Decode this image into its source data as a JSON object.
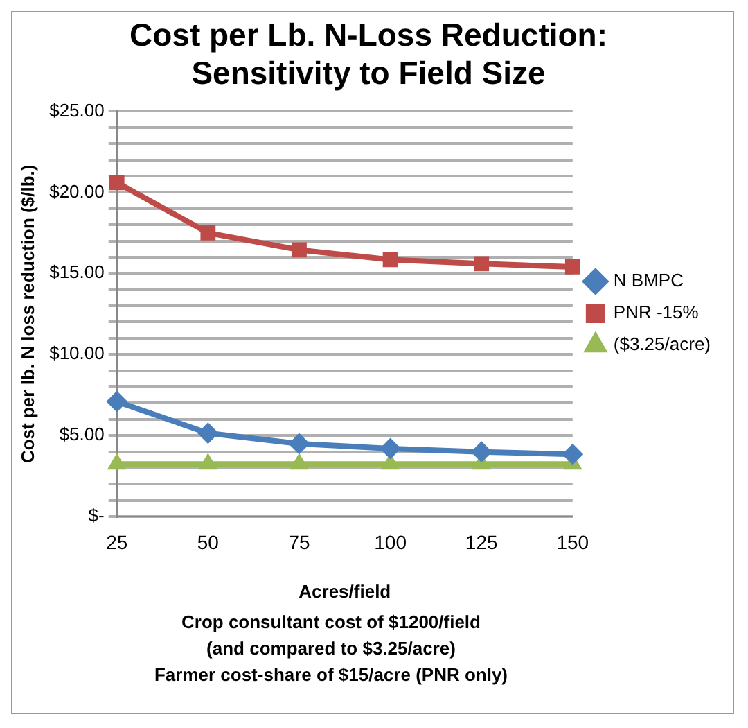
{
  "chart_data": {
    "type": "line",
    "title": "Cost per Lb. N-Loss Reduction: Sensitivity to Field Size",
    "xlabel": "Acres/field",
    "ylabel": "Cost per lb. N loss reduction ($/lb.)",
    "categories": [
      "25",
      "50",
      "75",
      "100",
      "125",
      "150"
    ],
    "series": [
      {
        "name": "N BMPC",
        "color": "#4a7ebb",
        "marker": "diamond",
        "values": [
          7.1,
          5.15,
          4.5,
          4.2,
          4.0,
          3.85
        ]
      },
      {
        "name": "PNR -15%",
        "color": "#be4b48",
        "marker": "square",
        "values": [
          20.6,
          17.5,
          16.45,
          15.85,
          15.6,
          15.4
        ]
      },
      {
        "name": "($3.25/acre)",
        "color": "#98b954",
        "marker": "triangle",
        "values": [
          3.25,
          3.25,
          3.25,
          3.25,
          3.25,
          3.25
        ]
      }
    ],
    "ylim": [
      0,
      25
    ],
    "yticks": [
      {
        "value": 0,
        "label": "$-"
      },
      {
        "value": 1,
        "label": null
      },
      {
        "value": 2,
        "label": null
      },
      {
        "value": 3,
        "label": null
      },
      {
        "value": 4,
        "label": null
      },
      {
        "value": 5,
        "label": "$5.00"
      },
      {
        "value": 6,
        "label": null
      },
      {
        "value": 7,
        "label": null
      },
      {
        "value": 8,
        "label": null
      },
      {
        "value": 9,
        "label": null
      },
      {
        "value": 10,
        "label": "$10.00"
      },
      {
        "value": 11,
        "label": null
      },
      {
        "value": 12,
        "label": null
      },
      {
        "value": 13,
        "label": null
      },
      {
        "value": 14,
        "label": null
      },
      {
        "value": 15,
        "label": "$15.00"
      },
      {
        "value": 16,
        "label": null
      },
      {
        "value": 17,
        "label": null
      },
      {
        "value": 18,
        "label": null
      },
      {
        "value": 19,
        "label": null
      },
      {
        "value": 20,
        "label": "$20.00"
      },
      {
        "value": 21,
        "label": null
      },
      {
        "value": 22,
        "label": null
      },
      {
        "value": 23,
        "label": null
      },
      {
        "value": 24,
        "label": null
      },
      {
        "value": 25,
        "label": "$25.00"
      }
    ],
    "grid": "y",
    "legend": "right",
    "line_style": "solid",
    "annotations": [
      "Crop consultant  cost of $1200/field",
      "(and compared to $3.25/acre)",
      "Farmer cost-share of $15/acre (PNR only)"
    ]
  }
}
